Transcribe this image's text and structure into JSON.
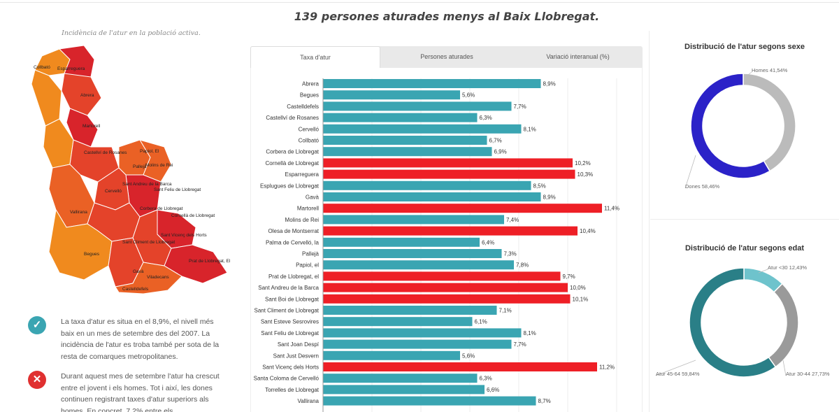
{
  "headline": "139 persones aturades menys al Baix Llobregat.",
  "map": {
    "caption": "Incidència de l'atur en la població activa.",
    "labels": [
      "Collbató",
      "Esparreguera",
      "Abrera",
      "Martorell",
      "Castellví de Rosanes",
      "Papiol, El",
      "Molins de Rei",
      "Pallejà",
      "Sant Andreu de la Barca",
      "Sant Feliu de Llobregat",
      "Cervelló",
      "Vallirana",
      "Corbera de Llobregat",
      "Sant Vicenç dels Horts",
      "Cornellà de Llobregat",
      "Sant Climent de Llobregat",
      "Prat de Llobregat, El",
      "Begues",
      "Viladecans",
      "Gavà",
      "Castelldefels"
    ],
    "colors": {
      "dark_red": "#d8242b",
      "red": "#e4432a",
      "orange_red": "#ea6125",
      "orange": "#f08a1e"
    }
  },
  "notes": [
    {
      "icon": "check-icon",
      "glyph": "✓",
      "text": "La taxa d'atur es situa en el 8,9%, el nivell més baix en un mes de setembre des del 2007. La incidència de l'atur es troba també per sota de la resta de comarques metropolitanes."
    },
    {
      "icon": "cross-icon",
      "glyph": "✕",
      "text": "Durant aquest mes de setembre l'atur ha crescut entre el jovent i els homes. Tot i així, les dones continuen registrant taxes d'atur superiors als homes. En concret, 7,2% entre els"
    }
  ],
  "tabs": [
    {
      "label": "Taxa d'atur",
      "active": true
    },
    {
      "label": "Persones aturades",
      "active": false
    },
    {
      "label": "Variació interanual (%)",
      "active": false
    }
  ],
  "chart_data": [
    {
      "type": "bar",
      "orientation": "horizontal",
      "categories": [
        "Abrera",
        "Begues",
        "Castelldefels",
        "Castellví de Rosanes",
        "Cervelló",
        "Collbató",
        "Corbera de Llobregat",
        "Cornellà de Llobregat",
        "Esparreguera",
        "Esplugues de Llobregat",
        "Gavà",
        "Martorell",
        "Molins de Rei",
        "Olesa de Montserrat",
        "Palma de Cervelló, la",
        "Pallejà",
        "Papiol, el",
        "Prat de Llobregat, el",
        "Sant Andreu de la Barca",
        "Sant Boi de Llobregat",
        "Sant Climent de Llobregat",
        "Sant Esteve Sesrovires",
        "Sant Feliu de Llobregat",
        "Sant Joan Despí",
        "Sant Just Desvern",
        "Sant Vicenç dels Horts",
        "Santa Coloma de Cervelló",
        "Torrelles de Llobregat",
        "Vallirana"
      ],
      "values": [
        8.9,
        5.6,
        7.7,
        6.3,
        8.1,
        6.7,
        6.9,
        10.2,
        10.3,
        8.5,
        8.9,
        11.4,
        7.4,
        10.4,
        6.4,
        7.3,
        7.8,
        9.7,
        10.0,
        10.1,
        7.1,
        6.1,
        8.1,
        7.7,
        5.6,
        11.2,
        6.3,
        6.6,
        8.7
      ],
      "value_labels": [
        "8,9%",
        "5,6%",
        "7,7%",
        "6,3%",
        "8,1%",
        "6,7%",
        "6,9%",
        "10,2%",
        "10,3%",
        "8,5%",
        "8,9%",
        "11,4%",
        "7,4%",
        "10,4%",
        "6,4%",
        "7,3%",
        "7,8%",
        "9,7%",
        "10,0%",
        "10,1%",
        "7,1%",
        "6,1%",
        "8,1%",
        "7,7%",
        "5,6%",
        "11,2%",
        "6,3%",
        "6,6%",
        "8,7%"
      ],
      "above_average": [
        false,
        false,
        false,
        false,
        false,
        false,
        false,
        true,
        true,
        false,
        false,
        true,
        false,
        true,
        false,
        false,
        false,
        true,
        true,
        true,
        false,
        false,
        false,
        false,
        false,
        true,
        false,
        false,
        false
      ],
      "colors": {
        "below": "#3aa5b2",
        "above": "#ee1f26"
      },
      "xlim": [
        0,
        12
      ],
      "grid": true
    },
    {
      "type": "pie",
      "donut": true,
      "title": "Distribució de l'atur segons sexe",
      "slices": [
        {
          "label": "Homes 41,54%",
          "value": 41.54,
          "color": "#bbbbbb"
        },
        {
          "label": "Dones 58,46%",
          "value": 58.46,
          "color": "#2b22c8"
        }
      ]
    },
    {
      "type": "pie",
      "donut": true,
      "title": "Distribució de l'atur segons edat",
      "slices": [
        {
          "label": "Atur <30 12,43%",
          "value": 12.43,
          "color": "#6ec3cc"
        },
        {
          "label": "Atur 30-44 27,73%",
          "value": 27.73,
          "color": "#9a9a9a"
        },
        {
          "label": "Atur 45-64 59,84%",
          "value": 59.84,
          "color": "#2a7f87"
        }
      ]
    }
  ]
}
